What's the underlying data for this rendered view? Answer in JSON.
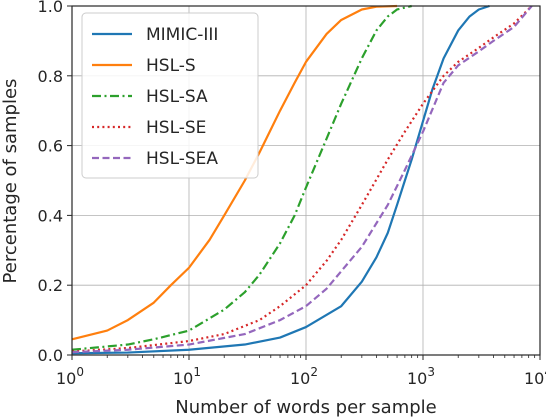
{
  "chart_data": {
    "type": "line",
    "title": "",
    "xlabel": "Number of words per sample",
    "ylabel": "Percentage of samples",
    "x_scale": "log",
    "xlim": [
      1,
      10000
    ],
    "ylim": [
      0,
      1.0
    ],
    "x_ticks": [
      {
        "value": 1,
        "base": "10",
        "exp": "0"
      },
      {
        "value": 10,
        "base": "10",
        "exp": "1"
      },
      {
        "value": 100,
        "base": "10",
        "exp": "2"
      },
      {
        "value": 1000,
        "base": "10",
        "exp": "3"
      },
      {
        "value": 10000,
        "base": "10",
        "exp": "4"
      }
    ],
    "y_ticks": [
      {
        "value": 0.0,
        "label": "0.0"
      },
      {
        "value": 0.2,
        "label": "0.2"
      },
      {
        "value": 0.4,
        "label": "0.4"
      },
      {
        "value": 0.6,
        "label": "0.6"
      },
      {
        "value": 0.8,
        "label": "0.8"
      },
      {
        "value": 1.0,
        "label": "1.0"
      }
    ],
    "grid": true,
    "legend_position": "top-left",
    "series": [
      {
        "name": "MIMIC-III",
        "color": "#1f77b4",
        "dash": "solid",
        "points": [
          [
            1,
            0.005
          ],
          [
            3,
            0.007
          ],
          [
            10,
            0.015
          ],
          [
            30,
            0.03
          ],
          [
            60,
            0.05
          ],
          [
            100,
            0.08
          ],
          [
            200,
            0.14
          ],
          [
            300,
            0.21
          ],
          [
            400,
            0.28
          ],
          [
            500,
            0.35
          ],
          [
            600,
            0.43
          ],
          [
            700,
            0.5
          ],
          [
            800,
            0.56
          ],
          [
            1000,
            0.67
          ],
          [
            1200,
            0.76
          ],
          [
            1500,
            0.85
          ],
          [
            2000,
            0.93
          ],
          [
            2500,
            0.97
          ],
          [
            3000,
            0.99
          ],
          [
            3700,
            1.0
          ]
        ]
      },
      {
        "name": "HSL-S",
        "color": "#ff7f0e",
        "dash": "solid",
        "points": [
          [
            1,
            0.045
          ],
          [
            2,
            0.07
          ],
          [
            3,
            0.1
          ],
          [
            5,
            0.15
          ],
          [
            7,
            0.2
          ],
          [
            10,
            0.25
          ],
          [
            15,
            0.33
          ],
          [
            20,
            0.4
          ],
          [
            30,
            0.5
          ],
          [
            40,
            0.58
          ],
          [
            60,
            0.7
          ],
          [
            80,
            0.78
          ],
          [
            100,
            0.84
          ],
          [
            150,
            0.92
          ],
          [
            200,
            0.96
          ],
          [
            300,
            0.99
          ],
          [
            400,
            0.998
          ],
          [
            600,
            1.0
          ]
        ]
      },
      {
        "name": "HSL-SA",
        "color": "#2ca02c",
        "dash": "dashdot",
        "points": [
          [
            1,
            0.015
          ],
          [
            3,
            0.03
          ],
          [
            5,
            0.045
          ],
          [
            10,
            0.07
          ],
          [
            20,
            0.13
          ],
          [
            30,
            0.18
          ],
          [
            40,
            0.23
          ],
          [
            60,
            0.32
          ],
          [
            80,
            0.4
          ],
          [
            100,
            0.48
          ],
          [
            150,
            0.62
          ],
          [
            200,
            0.72
          ],
          [
            300,
            0.85
          ],
          [
            400,
            0.93
          ],
          [
            500,
            0.97
          ],
          [
            600,
            0.99
          ],
          [
            800,
            1.0
          ]
        ]
      },
      {
        "name": "HSL-SE",
        "color": "#d62728",
        "dash": "dotted",
        "points": [
          [
            1,
            0.01
          ],
          [
            3,
            0.02
          ],
          [
            10,
            0.04
          ],
          [
            20,
            0.06
          ],
          [
            40,
            0.1
          ],
          [
            60,
            0.14
          ],
          [
            100,
            0.2
          ],
          [
            150,
            0.27
          ],
          [
            200,
            0.33
          ],
          [
            300,
            0.43
          ],
          [
            500,
            0.56
          ],
          [
            700,
            0.64
          ],
          [
            1000,
            0.72
          ],
          [
            1500,
            0.8
          ],
          [
            2000,
            0.84
          ],
          [
            3000,
            0.88
          ],
          [
            4000,
            0.91
          ],
          [
            6000,
            0.95
          ],
          [
            8500,
            1.0
          ]
        ]
      },
      {
        "name": "HSL-SEA",
        "color": "#9467bd",
        "dash": "dashed",
        "points": [
          [
            1,
            0.008
          ],
          [
            3,
            0.015
          ],
          [
            10,
            0.03
          ],
          [
            30,
            0.06
          ],
          [
            60,
            0.1
          ],
          [
            100,
            0.14
          ],
          [
            150,
            0.19
          ],
          [
            200,
            0.24
          ],
          [
            300,
            0.31
          ],
          [
            500,
            0.43
          ],
          [
            700,
            0.53
          ],
          [
            1000,
            0.64
          ],
          [
            1500,
            0.78
          ],
          [
            2000,
            0.83
          ],
          [
            3000,
            0.87
          ],
          [
            4000,
            0.9
          ],
          [
            6000,
            0.94
          ],
          [
            8500,
            1.0
          ]
        ]
      }
    ]
  }
}
